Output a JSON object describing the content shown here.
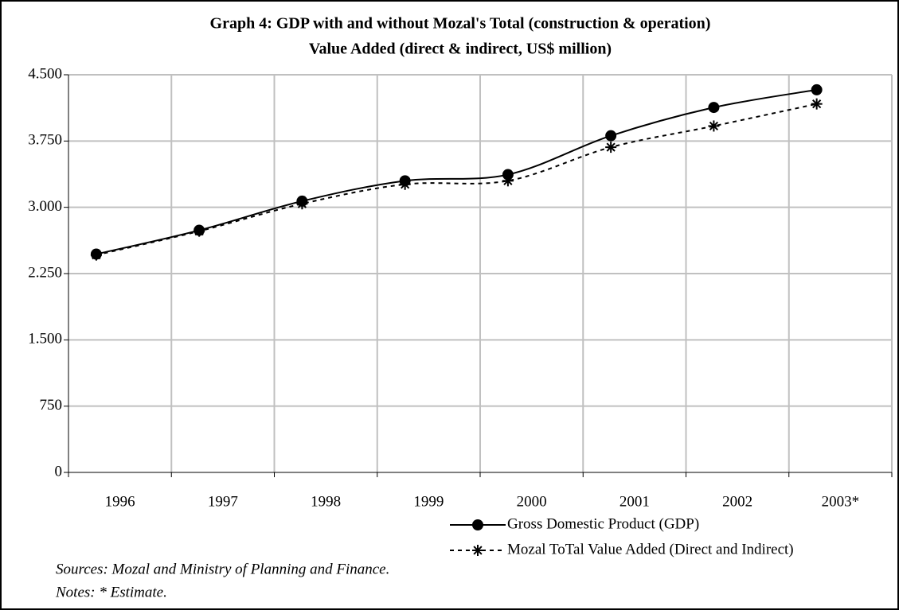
{
  "chart_data": {
    "type": "line",
    "title": [
      "Graph 4: GDP with and without Mozal's Total (construction & operation)",
      "Value Added (direct & indirect, US$ million)"
    ],
    "categories": [
      "1996",
      "1997",
      "1998",
      "1999",
      "2000",
      "2001",
      "2002",
      "2003*"
    ],
    "series": [
      {
        "name": "Gross Domestic Product (GDP)",
        "color": "#000000",
        "marker": "circle",
        "dash": "solid",
        "values": [
          2470,
          2740,
          3070,
          3300,
          3370,
          3810,
          4130,
          4330
        ]
      },
      {
        "name": "Mozal ToTal Value Added (Direct and Indirect)",
        "color": "#000000",
        "marker": "asterisk",
        "dash": "dashed",
        "values": [
          2460,
          2730,
          3040,
          3260,
          3300,
          3680,
          3920,
          4170
        ]
      }
    ],
    "ylim": [
      0,
      4500
    ],
    "yticks": [
      0,
      750,
      {
        "value": 1500,
        "label": "1.500"
      },
      {
        "value": 2250,
        "label": "2.250"
      },
      {
        "value": 3000,
        "label": "3.000"
      },
      {
        "value": 3750,
        "label": "3.750"
      },
      {
        "value": 4500,
        "label": "4.500"
      }
    ],
    "grid": true,
    "sources": "Sources: Mozal and Ministry of Planning and Finance.",
    "notes": "Notes: * Estimate."
  }
}
